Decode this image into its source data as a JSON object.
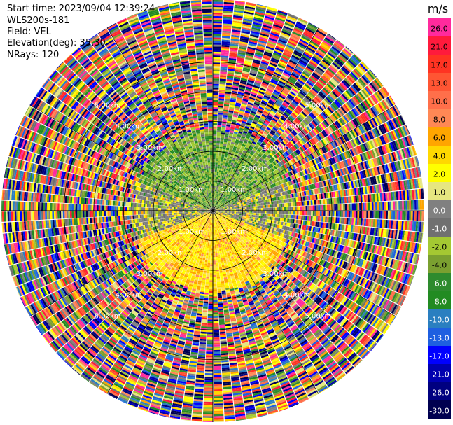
{
  "header": {
    "start_time": "Start time: 2023/09/04 12:39:24",
    "instrument": "WLS200s-181",
    "field": "Field: VEL",
    "elevation": "Elevation(deg): 35.30",
    "nrays": "NRays: 120"
  },
  "colorbar": {
    "unit_label": "m/s",
    "levels": [
      {
        "label": "26.0",
        "color": "#ff2a9d"
      },
      {
        "label": "21.0",
        "color": "#ff1a3c"
      },
      {
        "label": "17.0",
        "color": "#ff3322"
      },
      {
        "label": "13.0",
        "color": "#ff5533"
      },
      {
        "label": "10.0",
        "color": "#ff6f4a"
      },
      {
        "label": "8.0",
        "color": "#ff8855"
      },
      {
        "label": "6.0",
        "color": "#ffa500"
      },
      {
        "label": "4.0",
        "color": "#ffd800"
      },
      {
        "label": "2.0",
        "color": "#ffff00"
      },
      {
        "label": "1.0",
        "color": "#e6e680"
      },
      {
        "label": "0.0",
        "color": "#808080"
      },
      {
        "label": "-1.0",
        "color": "#707070"
      },
      {
        "label": "-2.0",
        "color": "#a4c832"
      },
      {
        "label": "-4.0",
        "color": "#7aa030"
      },
      {
        "label": "-6.0",
        "color": "#2e8b2e"
      },
      {
        "label": "-8.0",
        "color": "#228b22"
      },
      {
        "label": "-10.0",
        "color": "#2a7fc0"
      },
      {
        "label": "-13.0",
        "color": "#1e5fe0"
      },
      {
        "label": "-17.0",
        "color": "#0000ff"
      },
      {
        "label": "-21.0",
        "color": "#0000b0"
      },
      {
        "label": "-26.0",
        "color": "#000080"
      },
      {
        "label": "-30.0",
        "color": "#000050"
      }
    ]
  },
  "chart_data": {
    "type": "heatmap",
    "title": "",
    "field": "VEL",
    "units": "m/s",
    "nrays": 120,
    "elevation_deg": 35.3,
    "range_rings_km": [
      1.0,
      2.0,
      3.0,
      4.0,
      5.0
    ],
    "range_ring_labels": [
      "1.00km",
      "2.00km",
      "3.00km",
      "4.00km",
      "5.00km"
    ],
    "max_range_km": 7.1,
    "inner_pattern": {
      "north_sector_dominant": "green / olive (-2 to -6 m/s)",
      "south_sector_dominant": "yellow / orange (2 to 6 m/s)",
      "center_band": "grey (near 0 m/s)",
      "valid_data_radius_km": 2.75
    },
    "outer_pattern": "noise (all colours) beyond ~2.75 km"
  }
}
